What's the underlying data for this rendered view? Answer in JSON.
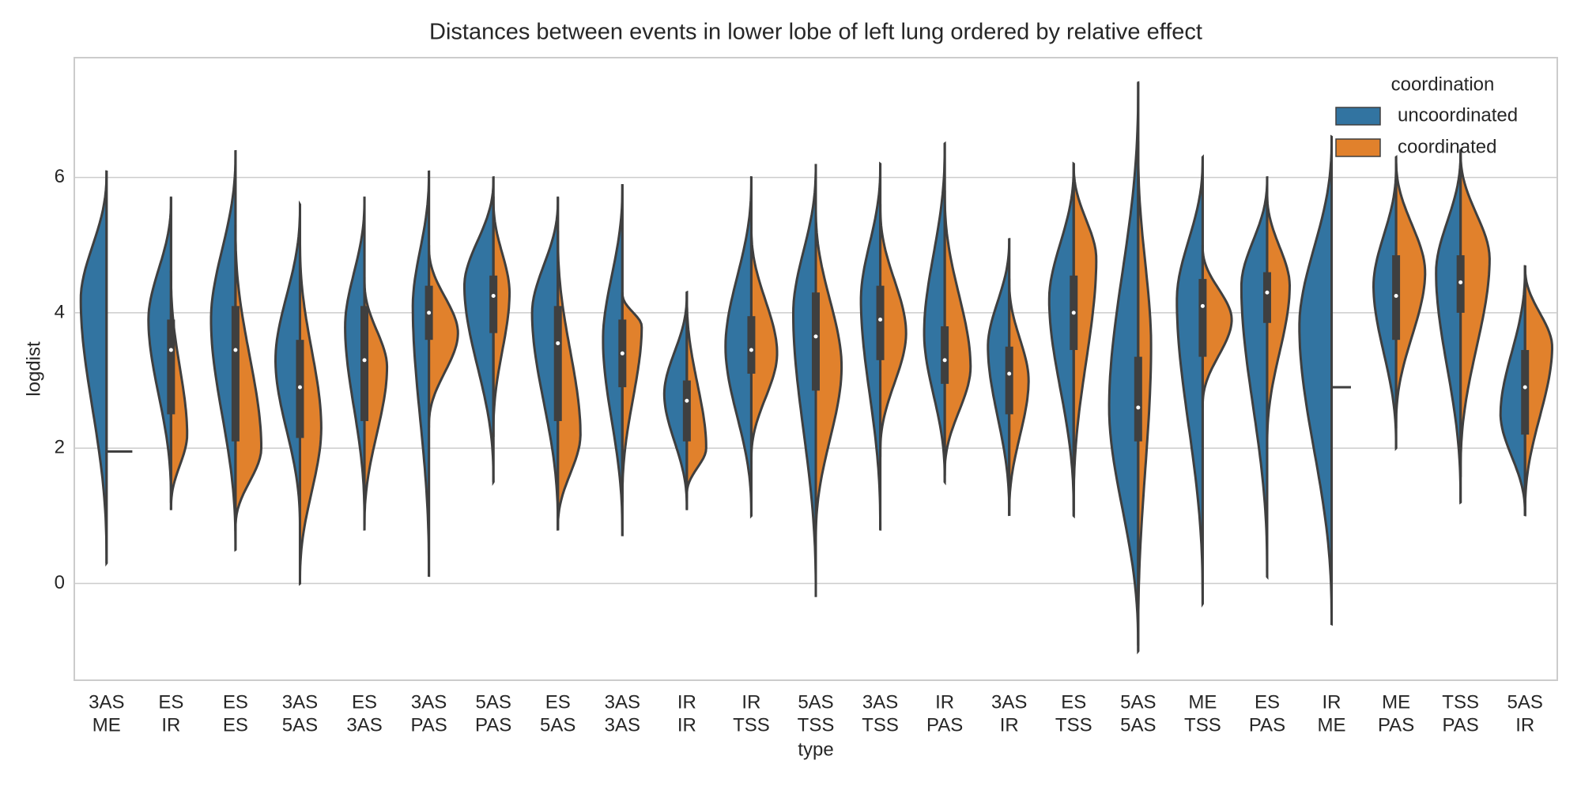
{
  "chart_data": {
    "type": "violin",
    "title": "Distances between events in lower lobe of left lung ordered by relative effect",
    "x_label": "type",
    "y_label": "logdist",
    "categories": [
      [
        "3AS",
        "ME"
      ],
      [
        "ES",
        "IR"
      ],
      [
        "ES",
        "ES"
      ],
      [
        "3AS",
        "5AS"
      ],
      [
        "ES",
        "3AS"
      ],
      [
        "3AS",
        "PAS"
      ],
      [
        "5AS",
        "PAS"
      ],
      [
        "ES",
        "5AS"
      ],
      [
        "3AS",
        "3AS"
      ],
      [
        "IR",
        "IR"
      ],
      [
        "IR",
        "TSS"
      ],
      [
        "5AS",
        "TSS"
      ],
      [
        "3AS",
        "TSS"
      ],
      [
        "IR",
        "PAS"
      ],
      [
        "3AS",
        "IR"
      ],
      [
        "ES",
        "TSS"
      ],
      [
        "5AS",
        "5AS"
      ],
      [
        "ME",
        "TSS"
      ],
      [
        "ES",
        "PAS"
      ],
      [
        "IR",
        "ME"
      ],
      [
        "ME",
        "PAS"
      ],
      [
        "TSS",
        "PAS"
      ],
      [
        "5AS",
        "IR"
      ]
    ],
    "series": [
      {
        "name": "uncoordinated",
        "color": "#3274a1",
        "lo": [
          0.3,
          1.2,
          0.5,
          0.8,
          0.9,
          0.1,
          1.5,
          0.8,
          0.7,
          1.1,
          1.0,
          -0.2,
          0.8,
          1.5,
          1.0,
          1.0,
          -1.0,
          -0.3,
          0.1,
          -0.6,
          2.0,
          1.2,
          1.0
        ],
        "hi": [
          6.1,
          5.7,
          6.4,
          5.6,
          5.7,
          6.1,
          6.0,
          5.7,
          5.9,
          4.3,
          6.0,
          6.2,
          6.2,
          6.5,
          5.1,
          6.2,
          7.4,
          6.3,
          6.0,
          6.6,
          6.2,
          6.4,
          4.7
        ],
        "mode": [
          4.2,
          3.9,
          3.9,
          3.3,
          3.8,
          4.1,
          4.4,
          4.0,
          3.6,
          2.8,
          3.5,
          4.0,
          4.2,
          3.7,
          3.5,
          4.2,
          2.6,
          4.2,
          4.4,
          3.8,
          4.4,
          4.6,
          2.5
        ],
        "width": [
          0.4,
          0.35,
          0.38,
          0.38,
          0.3,
          0.25,
          0.45,
          0.4,
          0.3,
          0.35,
          0.4,
          0.35,
          0.3,
          0.32,
          0.33,
          0.38,
          0.45,
          0.4,
          0.4,
          0.5,
          0.35,
          0.38,
          0.38
        ]
      },
      {
        "name": "coordinated",
        "color": "#e1812c",
        "lo": [
          1.95,
          1.1,
          0.8,
          0.0,
          0.8,
          2.3,
          2.2,
          0.8,
          1.2,
          1.3,
          1.8,
          0.6,
          1.9,
          1.6,
          1.0,
          1.1,
          -0.9,
          2.6,
          2.0,
          2.9,
          2.3,
          1.6,
          1.0
        ],
        "hi": [
          1.95,
          4.6,
          5.3,
          5.1,
          4.5,
          5.0,
          5.7,
          5.2,
          4.3,
          4.3,
          5.3,
          5.6,
          5.6,
          5.8,
          4.5,
          6.2,
          6.5,
          5.0,
          5.8,
          2.9,
          6.3,
          6.4,
          4.7
        ],
        "mode": [
          1.95,
          2.2,
          2.0,
          2.3,
          3.2,
          3.7,
          4.3,
          2.2,
          3.8,
          2.0,
          3.4,
          3.2,
          3.7,
          3.2,
          3.0,
          4.8,
          3.5,
          3.9,
          4.4,
          2.9,
          4.6,
          4.8,
          3.5
        ],
        "width": [
          0.4,
          0.25,
          0.4,
          0.33,
          0.35,
          0.45,
          0.25,
          0.35,
          0.3,
          0.3,
          0.4,
          0.4,
          0.4,
          0.4,
          0.3,
          0.35,
          0.2,
          0.45,
          0.35,
          0.3,
          0.45,
          0.45,
          0.42
        ]
      }
    ],
    "box": {
      "q1": [
        null,
        2.5,
        2.1,
        2.15,
        2.4,
        3.6,
        3.7,
        2.4,
        2.9,
        2.1,
        3.1,
        2.85,
        3.3,
        2.95,
        2.5,
        3.45,
        2.1,
        3.35,
        3.85,
        null,
        3.6,
        4.0,
        2.2
      ],
      "median": [
        null,
        3.45,
        3.45,
        2.9,
        3.3,
        4.0,
        4.25,
        3.55,
        3.4,
        2.7,
        3.45,
        3.65,
        3.9,
        3.3,
        3.1,
        4.0,
        2.6,
        4.1,
        4.3,
        null,
        4.25,
        4.45,
        2.9
      ],
      "q3": [
        null,
        3.9,
        4.1,
        3.6,
        4.1,
        4.4,
        4.55,
        4.1,
        3.9,
        3.0,
        3.95,
        4.3,
        4.4,
        3.8,
        3.5,
        4.55,
        3.35,
        4.5,
        4.6,
        null,
        4.85,
        4.85,
        3.45
      ]
    },
    "ylim": [
      -1.43,
      7.77
    ],
    "yticks": [
      0,
      2,
      4,
      6
    ],
    "grid": true,
    "legend_title": "coordination",
    "legend": "upper right"
  }
}
